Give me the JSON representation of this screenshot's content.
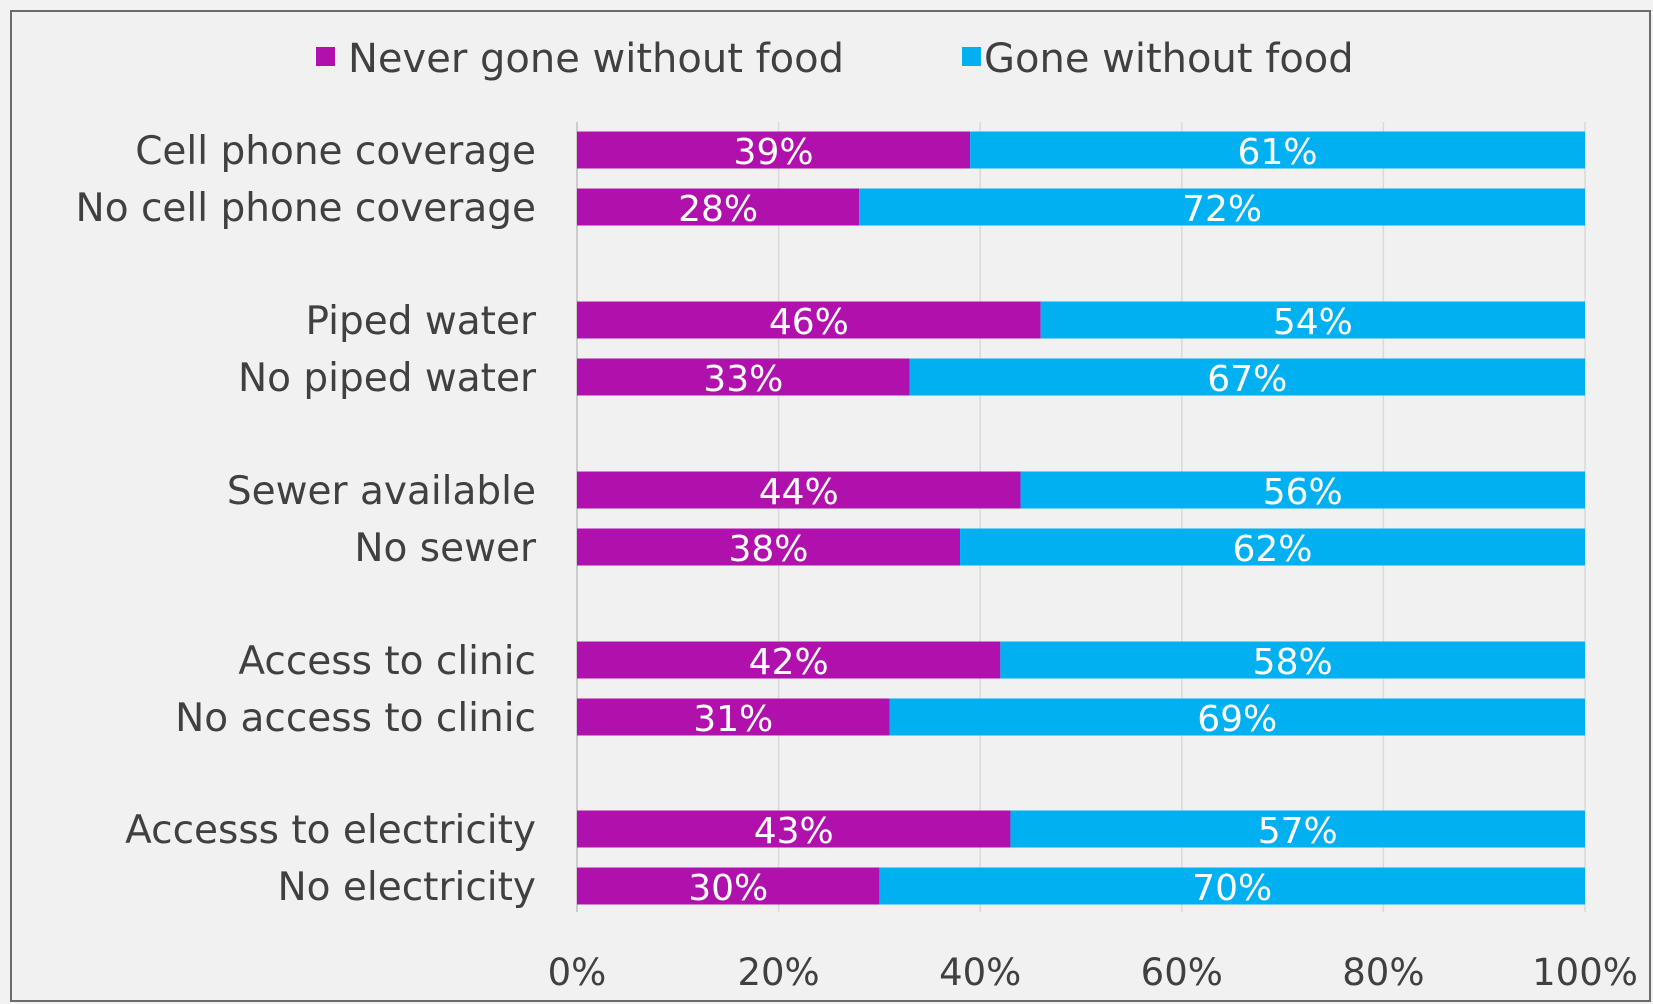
{
  "chart_data": {
    "type": "bar",
    "orientation": "horizontal",
    "stacked": true,
    "categories": [
      "Cell phone coverage",
      "No cell phone coverage",
      "Piped water",
      "No piped water",
      "Sewer available",
      "No sewer",
      "Access to clinic",
      "No access to clinic",
      "Accesss to electricity",
      "No electricity"
    ],
    "series": [
      {
        "name": "Never gone without food",
        "color": "#b011ad",
        "values": [
          39,
          28,
          46,
          33,
          44,
          38,
          42,
          31,
          43,
          30
        ],
        "labels": [
          "39%",
          "28%",
          "46%",
          "33%",
          "44%",
          "38%",
          "42%",
          "31%",
          "43%",
          "30%"
        ]
      },
      {
        "name": "Gone without food",
        "color": "#00b0f0",
        "values": [
          61,
          72,
          54,
          67,
          56,
          62,
          58,
          69,
          57,
          70
        ],
        "labels": [
          "61%",
          "72%",
          "54%",
          "67%",
          "56%",
          "62%",
          "58%",
          "69%",
          "57%",
          "70%"
        ]
      }
    ],
    "xlim": [
      0,
      100
    ],
    "xticks": [
      "0%",
      "20%",
      "40%",
      "60%",
      "80%",
      "100%"
    ],
    "grid": "vertical",
    "legend": "top"
  }
}
